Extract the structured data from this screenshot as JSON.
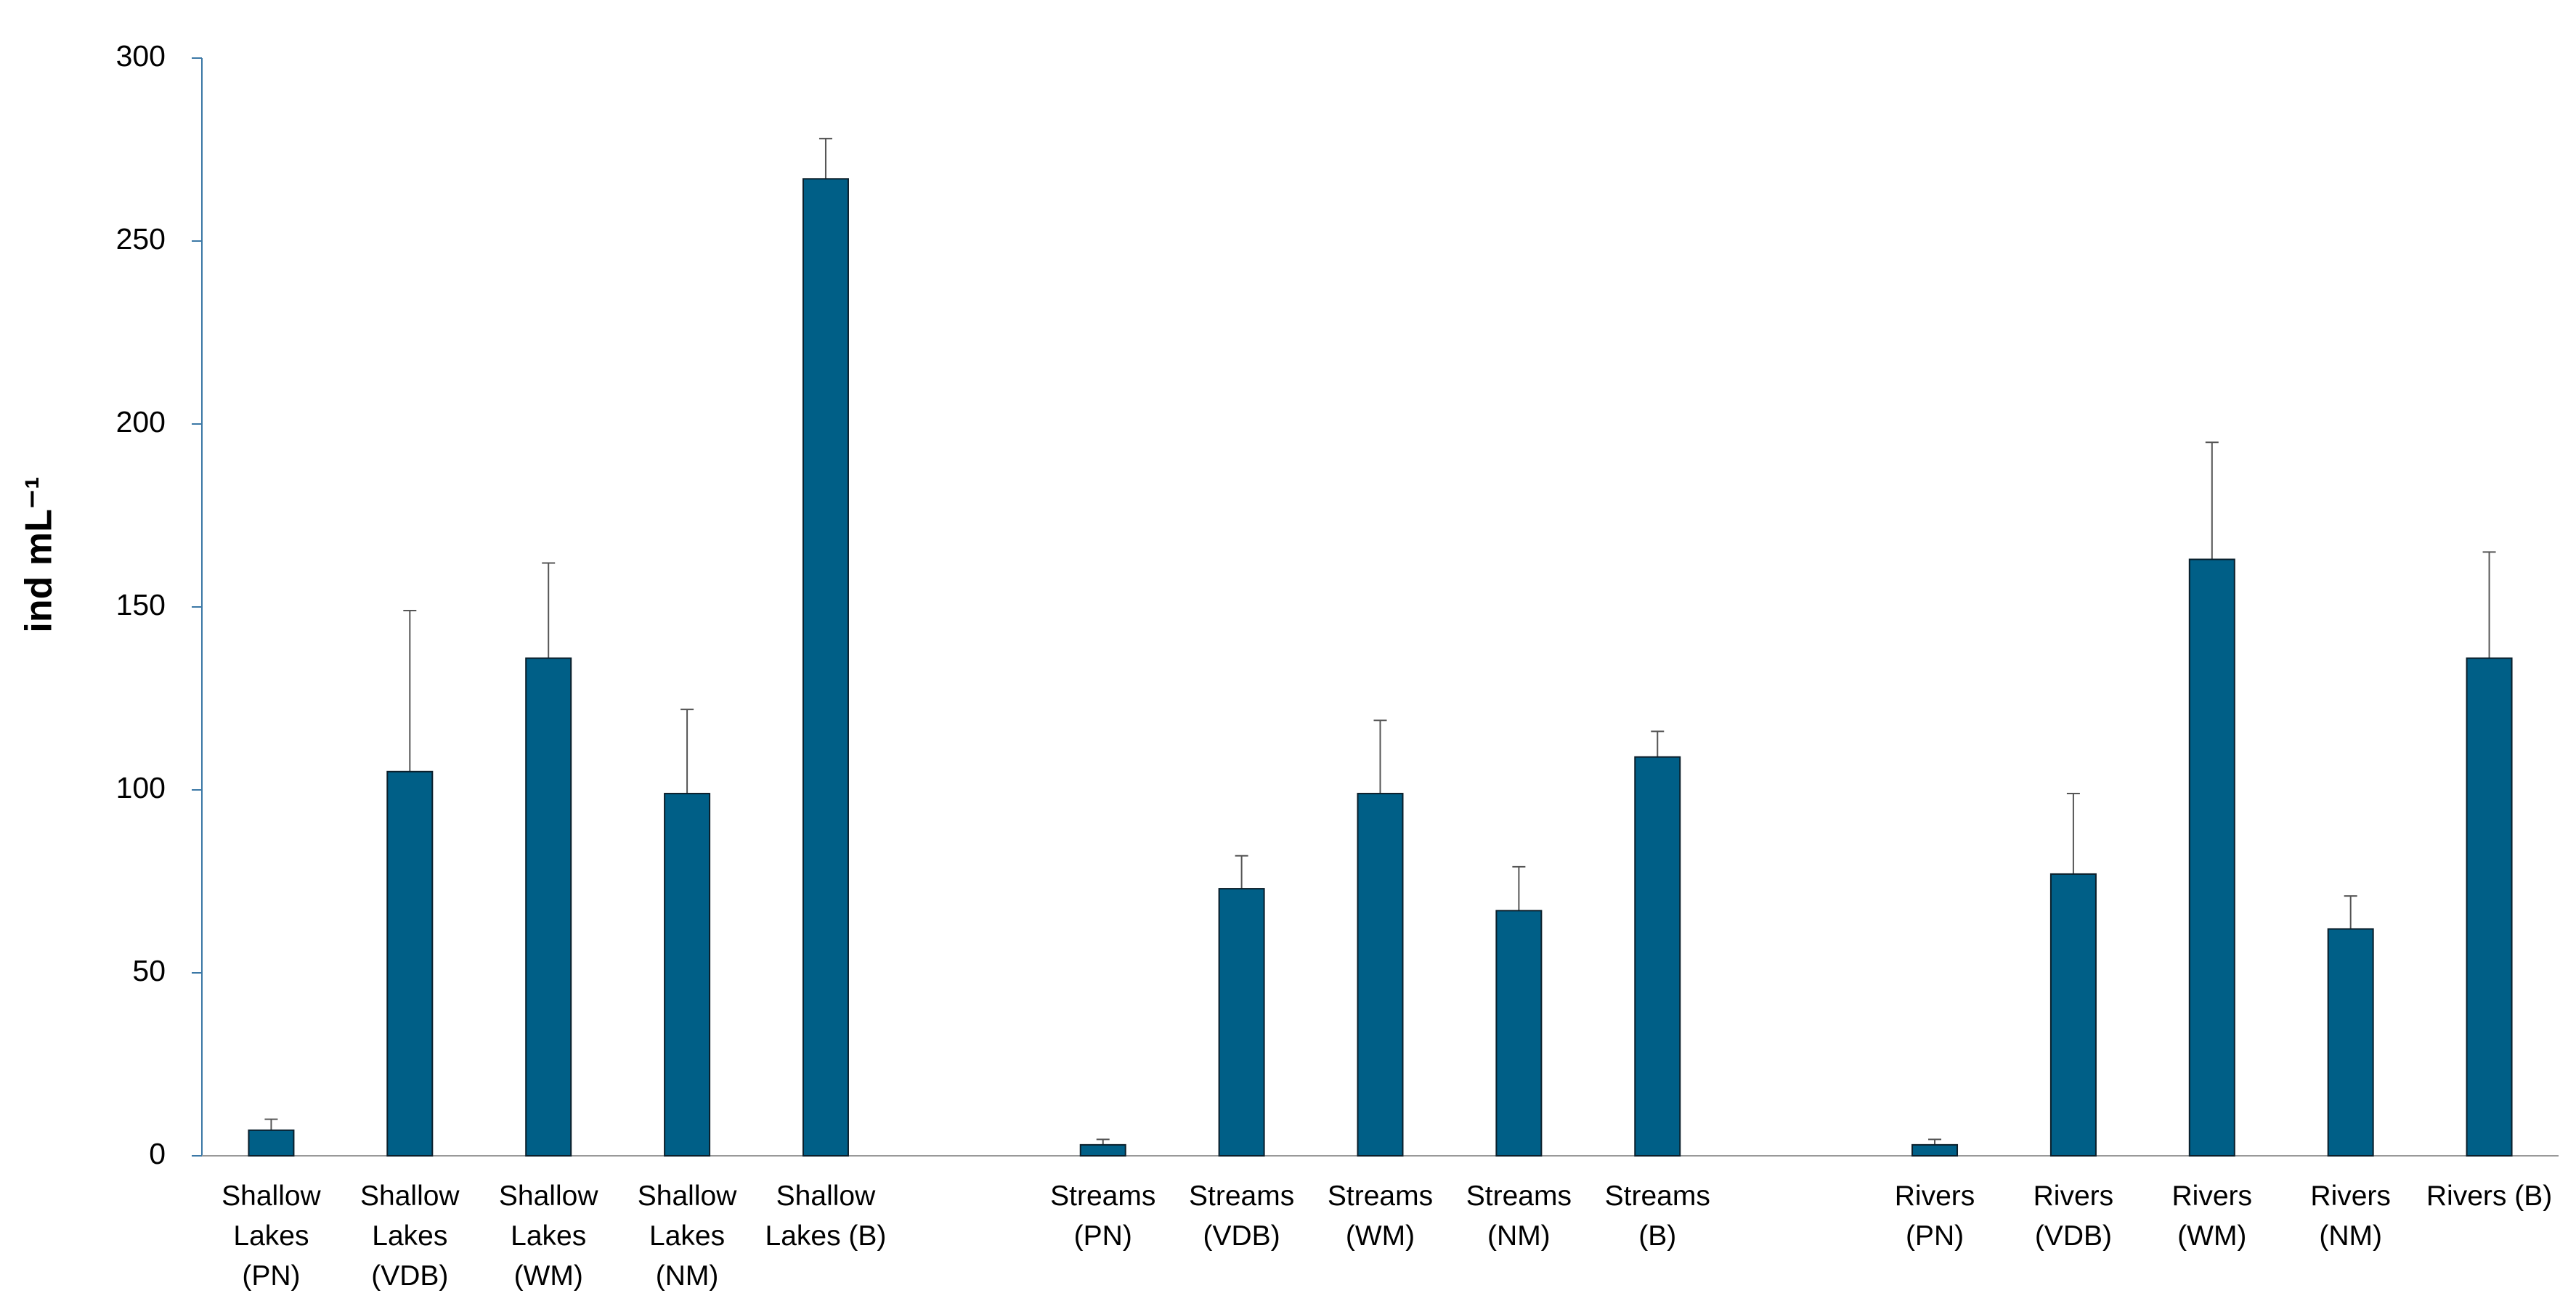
{
  "chart_data": {
    "type": "bar",
    "y_label": "ind mL⁻¹",
    "categories": [
      "Shallow Lakes (PN)",
      "Shallow Lakes (VDB)",
      "Shallow Lakes (WM)",
      "Shallow Lakes (NM)",
      "Shallow Lakes (B)",
      null,
      "Streams (PN)",
      "Streams (VDB)",
      "Streams (WM)",
      "Streams (NM)",
      "Streams (B)",
      null,
      "Rivers (PN)",
      "Rivers (VDB)",
      "Rivers (WM)",
      "Rivers (NM)",
      "Rivers (B)"
    ],
    "values": [
      7,
      105,
      136,
      99,
      267,
      null,
      3,
      73,
      99,
      67,
      109,
      null,
      3,
      77,
      163,
      62,
      136
    ],
    "errors": [
      3,
      44,
      26,
      23,
      11,
      null,
      1.5,
      9,
      20,
      12,
      7,
      null,
      1.5,
      22,
      32,
      9,
      29
    ],
    "color": "#005f87",
    "ylim": [
      0,
      300
    ],
    "yticks": [
      0,
      50,
      100,
      150,
      200,
      250,
      300
    ],
    "grid": false
  }
}
